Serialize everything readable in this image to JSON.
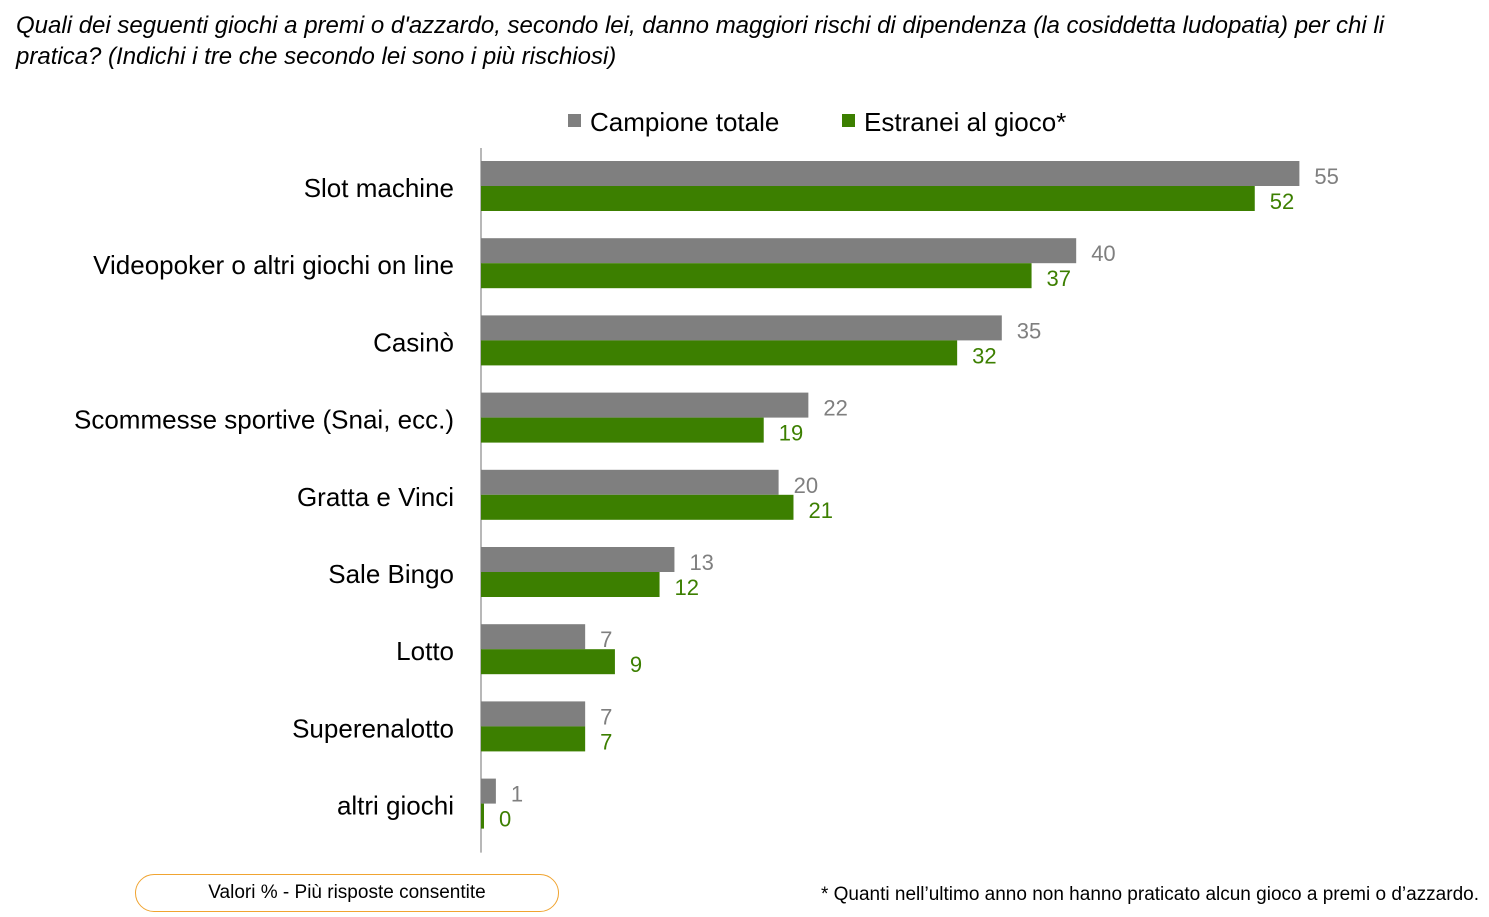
{
  "question": "Quali dei seguenti giochi a premi o d'azzardo, secondo lei, danno maggiori rischi di dipendenza (la cosiddetta ludopatia) per chi li pratica? (Indichi i tre che secondo lei sono i più rischiosi)",
  "note": "Valori % - Più risposte consentite",
  "footnote": "* Quanti nell’ultimo anno non hanno praticato alcun gioco a premi o d’azzardo.",
  "colors": {
    "series1": "#7f7f7f",
    "series2": "#3c7f00",
    "axis": "#888888",
    "note_border": "#f0a431"
  },
  "chart_data": {
    "type": "bar",
    "orientation": "horizontal",
    "title": "",
    "xlabel": "",
    "ylabel": "",
    "xlim": [
      0,
      55
    ],
    "grid": false,
    "legend_position": "top",
    "categories": [
      "Slot machine",
      "Videopoker o altri giochi on line",
      "Casinò",
      "Scommesse sportive (Snai, ecc.)",
      "Gratta e Vinci",
      "Sale Bingo",
      "Lotto",
      "Superenalotto",
      "altri giochi"
    ],
    "series": [
      {
        "name": "Campione totale",
        "color": "#7f7f7f",
        "values": [
          55,
          40,
          35,
          22,
          20,
          13,
          7,
          7,
          1
        ]
      },
      {
        "name": "Estranei al gioco*",
        "color": "#3c7f00",
        "values": [
          52,
          37,
          32,
          19,
          21,
          12,
          9,
          7,
          0
        ]
      }
    ]
  }
}
